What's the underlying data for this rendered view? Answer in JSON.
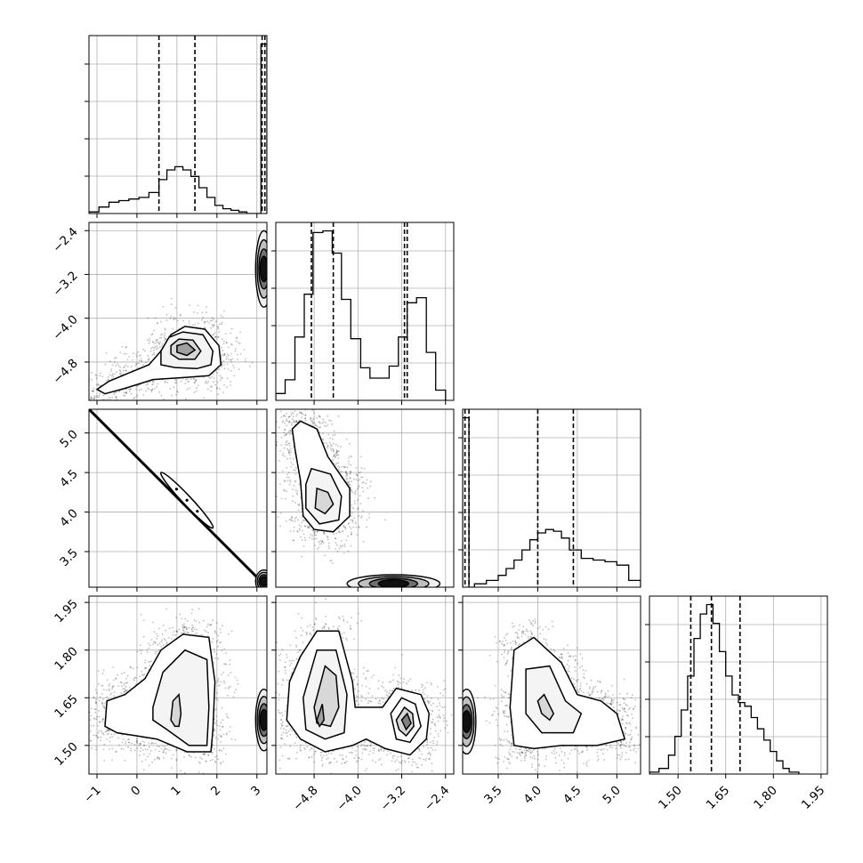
{
  "chart_data": {
    "type": "corner",
    "grid": true,
    "parameters": [
      {
        "range": [
          -1.2,
          3.25
        ],
        "ticks": [
          -1,
          0,
          1,
          2,
          3
        ],
        "tick_labels": [
          "−1",
          "0",
          "1",
          "2",
          "3"
        ],
        "quantiles": [
          0.55,
          1.45,
          3.13,
          3.2
        ],
        "histogram": {
          "bin_edges": [
            -1.2,
            -0.95,
            -0.7,
            -0.45,
            -0.2,
            0.05,
            0.3,
            0.55,
            0.75,
            0.95,
            1.15,
            1.35,
            1.55,
            1.75,
            1.95,
            2.15,
            2.35,
            2.55,
            2.75,
            3.1,
            3.25
          ],
          "counts": [
            0.01,
            0.04,
            0.07,
            0.08,
            0.09,
            0.1,
            0.13,
            0.21,
            0.27,
            0.29,
            0.27,
            0.23,
            0.16,
            0.1,
            0.05,
            0.03,
            0.02,
            0.01,
            0.0,
            1.05
          ]
        }
      },
      {
        "range": [
          -5.5,
          -2.25
        ],
        "ticks": [
          -4.8,
          -4.0,
          -3.2,
          -2.4
        ],
        "tick_labels": [
          "−4.8",
          "−4.0",
          "−3.2",
          "−2.4"
        ],
        "quantiles": [
          -4.85,
          -4.45,
          -3.15,
          -3.1
        ],
        "histogram": {
          "bin_edges": [
            -5.5,
            -5.33,
            -5.15,
            -4.98,
            -4.82,
            -4.64,
            -4.47,
            -4.3,
            -4.13,
            -3.95,
            -3.78,
            -3.6,
            -3.43,
            -3.26,
            -3.1,
            -2.93,
            -2.75,
            -2.58,
            -2.4
          ],
          "counts": [
            0.04,
            0.12,
            0.37,
            0.62,
            0.98,
            0.99,
            0.86,
            0.59,
            0.36,
            0.19,
            0.13,
            0.13,
            0.2,
            0.37,
            0.57,
            0.6,
            0.28,
            0.06
          ]
        }
      },
      {
        "range": [
          3.05,
          5.3
        ],
        "ticks": [
          3.5,
          4.0,
          4.5,
          5.0
        ],
        "tick_labels": [
          "3.5",
          "4.0",
          "4.5",
          "5.0"
        ],
        "quantiles": [
          3.08,
          3.13,
          4.0,
          4.45
        ],
        "histogram": {
          "bin_edges": [
            3.05,
            3.13,
            3.2,
            3.35,
            3.5,
            3.6,
            3.7,
            3.8,
            3.9,
            4.0,
            4.1,
            4.2,
            4.3,
            4.4,
            4.55,
            4.7,
            4.85,
            5.0,
            5.15,
            5.3
          ],
          "counts": [
            1.0,
            0.0,
            0.02,
            0.04,
            0.07,
            0.11,
            0.16,
            0.22,
            0.28,
            0.32,
            0.34,
            0.33,
            0.29,
            0.22,
            0.17,
            0.16,
            0.15,
            0.13,
            0.04
          ]
        }
      },
      {
        "range": [
          1.41,
          1.97
        ],
        "ticks": [
          1.5,
          1.65,
          1.8,
          1.95
        ],
        "tick_labels": [
          "1.50",
          "1.65",
          "1.80",
          "1.95"
        ],
        "quantiles": [
          1.54,
          1.605,
          1.695
        ],
        "histogram": {
          "bin_edges": [
            1.41,
            1.44,
            1.47,
            1.49,
            1.51,
            1.53,
            1.55,
            1.57,
            1.59,
            1.61,
            1.63,
            1.65,
            1.67,
            1.69,
            1.71,
            1.73,
            1.75,
            1.77,
            1.79,
            1.81,
            1.83,
            1.85,
            1.88
          ],
          "counts": [
            0.01,
            0.03,
            0.1,
            0.2,
            0.34,
            0.52,
            0.72,
            0.85,
            0.9,
            0.8,
            0.65,
            0.52,
            0.42,
            0.38,
            0.36,
            0.3,
            0.24,
            0.18,
            0.12,
            0.07,
            0.03,
            0.01
          ]
        }
      }
    ],
    "pairs": [
      {
        "row": 1,
        "col": 0,
        "contours": [
          [
            [
              -1.0,
              -5.3
            ],
            [
              -0.7,
              -5.15
            ],
            [
              -0.2,
              -5.0
            ],
            [
              0.3,
              -4.85
            ],
            [
              0.6,
              -4.6
            ],
            [
              0.85,
              -4.3
            ],
            [
              1.2,
              -4.15
            ],
            [
              1.7,
              -4.2
            ],
            [
              2.05,
              -4.5
            ],
            [
              2.1,
              -4.85
            ],
            [
              1.8,
              -5.05
            ],
            [
              1.2,
              -5.08
            ],
            [
              0.4,
              -5.12
            ],
            [
              -0.3,
              -5.28
            ],
            [
              -0.8,
              -5.38
            ]
          ],
          [
            [
              0.6,
              -4.6
            ],
            [
              0.8,
              -4.35
            ],
            [
              1.15,
              -4.25
            ],
            [
              1.65,
              -4.3
            ],
            [
              1.9,
              -4.6
            ],
            [
              1.85,
              -4.85
            ],
            [
              1.5,
              -4.92
            ],
            [
              0.95,
              -4.9
            ],
            [
              0.6,
              -4.85
            ]
          ],
          [
            [
              0.85,
              -4.5
            ],
            [
              1.05,
              -4.38
            ],
            [
              1.4,
              -4.4
            ],
            [
              1.6,
              -4.6
            ],
            [
              1.45,
              -4.75
            ],
            [
              1.05,
              -4.75
            ],
            [
              0.85,
              -4.65
            ]
          ],
          [
            [
              1.0,
              -4.5
            ],
            [
              1.25,
              -4.45
            ],
            [
              1.45,
              -4.58
            ],
            [
              1.25,
              -4.68
            ],
            [
              1.0,
              -4.62
            ]
          ]
        ],
        "edge_cluster": {
          "x": [
            3.1,
            3.25
          ],
          "y": [
            -3.7,
            -2.5
          ]
        }
      },
      {
        "row": 2,
        "col": 0,
        "ridge": [
          [
            -1.2,
            5.3
          ],
          [
            3.25,
            3.05
          ]
        ],
        "blob": [
          [
            0.6,
            4.5
          ],
          [
            1.9,
            3.8
          ]
        ],
        "edge_cluster": {
          "x": [
            3.1,
            3.25
          ],
          "y": [
            3.05,
            3.2
          ]
        }
      },
      {
        "row": 2,
        "col": 1,
        "contours": [
          [
            [
              -5.05,
              5.15
            ],
            [
              -4.75,
              5.05
            ],
            [
              -4.55,
              4.7
            ],
            [
              -4.35,
              4.5
            ],
            [
              -4.15,
              4.3
            ],
            [
              -4.15,
              3.95
            ],
            [
              -4.45,
              3.75
            ],
            [
              -4.8,
              3.78
            ],
            [
              -5.0,
              3.95
            ],
            [
              -5.05,
              4.4
            ],
            [
              -5.15,
              4.8
            ],
            [
              -5.2,
              5.05
            ]
          ],
          [
            [
              -4.85,
              4.55
            ],
            [
              -4.5,
              4.48
            ],
            [
              -4.3,
              4.2
            ],
            [
              -4.35,
              3.9
            ],
            [
              -4.7,
              3.85
            ],
            [
              -4.95,
              4.05
            ],
            [
              -4.95,
              4.35
            ]
          ],
          [
            [
              -4.75,
              4.3
            ],
            [
              -4.55,
              4.25
            ],
            [
              -4.45,
              4.1
            ],
            [
              -4.6,
              3.98
            ],
            [
              -4.78,
              4.05
            ]
          ]
        ],
        "edge_cluster": {
          "x": [
            -4.1,
            -2.6
          ],
          "y": [
            3.05,
            3.14
          ]
        }
      },
      {
        "row": 3,
        "col": 0,
        "contours": [
          [
            [
              -0.8,
              1.56
            ],
            [
              -0.75,
              1.64
            ],
            [
              -0.3,
              1.66
            ],
            [
              0.2,
              1.71
            ],
            [
              0.6,
              1.8
            ],
            [
              1.15,
              1.85
            ],
            [
              1.8,
              1.84
            ],
            [
              1.95,
              1.7
            ],
            [
              1.9,
              1.55
            ],
            [
              1.85,
              1.48
            ],
            [
              1.25,
              1.48
            ],
            [
              0.5,
              1.52
            ],
            [
              0.0,
              1.53
            ],
            [
              -0.5,
              1.54
            ]
          ],
          [
            [
              0.4,
              1.62
            ],
            [
              0.65,
              1.73
            ],
            [
              1.2,
              1.8
            ],
            [
              1.75,
              1.77
            ],
            [
              1.8,
              1.62
            ],
            [
              1.75,
              1.5
            ],
            [
              1.3,
              1.5
            ],
            [
              0.75,
              1.55
            ],
            [
              0.4,
              1.58
            ]
          ],
          [
            [
              0.85,
              1.58
            ],
            [
              0.9,
              1.64
            ],
            [
              1.05,
              1.66
            ],
            [
              1.1,
              1.6
            ],
            [
              1.05,
              1.56
            ],
            [
              0.95,
              1.56
            ]
          ]
        ],
        "edge_cluster": {
          "x": [
            3.1,
            3.25
          ],
          "y": [
            1.5,
            1.66
          ]
        }
      },
      {
        "row": 3,
        "col": 1,
        "contours": [
          [
            [
              -5.05,
              1.78
            ],
            [
              -4.75,
              1.86
            ],
            [
              -4.35,
              1.86
            ],
            [
              -4.1,
              1.7
            ],
            [
              -4.05,
              1.62
            ],
            [
              -3.55,
              1.62
            ],
            [
              -3.3,
              1.68
            ],
            [
              -2.85,
              1.66
            ],
            [
              -2.7,
              1.6
            ],
            [
              -2.75,
              1.52
            ],
            [
              -3.05,
              1.47
            ],
            [
              -3.5,
              1.49
            ],
            [
              -3.85,
              1.52
            ],
            [
              -4.1,
              1.5
            ],
            [
              -4.6,
              1.48
            ],
            [
              -5.05,
              1.52
            ],
            [
              -5.3,
              1.58
            ],
            [
              -5.25,
              1.7
            ]
          ],
          [
            [
              -5.0,
              1.65
            ],
            [
              -4.75,
              1.8
            ],
            [
              -4.4,
              1.8
            ],
            [
              -4.2,
              1.66
            ],
            [
              -4.25,
              1.54
            ],
            [
              -4.6,
              1.52
            ],
            [
              -4.95,
              1.55
            ]
          ],
          [
            [
              -4.8,
              1.62
            ],
            [
              -4.6,
              1.75
            ],
            [
              -4.4,
              1.72
            ],
            [
              -4.35,
              1.62
            ],
            [
              -4.5,
              1.56
            ],
            [
              -4.75,
              1.57
            ]
          ],
          [
            [
              -4.75,
              1.58
            ],
            [
              -4.65,
              1.63
            ],
            [
              -4.62,
              1.58
            ],
            [
              -4.7,
              1.56
            ]
          ],
          [
            [
              -3.4,
              1.6
            ],
            [
              -3.2,
              1.65
            ],
            [
              -2.95,
              1.63
            ],
            [
              -2.85,
              1.56
            ],
            [
              -3.05,
              1.51
            ],
            [
              -3.3,
              1.52
            ]
          ],
          [
            [
              -3.3,
              1.58
            ],
            [
              -3.15,
              1.62
            ],
            [
              -3.0,
              1.6
            ],
            [
              -2.98,
              1.56
            ],
            [
              -3.12,
              1.53
            ],
            [
              -3.25,
              1.55
            ]
          ],
          [
            [
              -3.2,
              1.58
            ],
            [
              -3.1,
              1.6
            ],
            [
              -3.03,
              1.57
            ],
            [
              -3.12,
              1.55
            ]
          ]
        ]
      },
      {
        "row": 3,
        "col": 2,
        "contours": [
          [
            [
              3.7,
              1.8
            ],
            [
              3.95,
              1.84
            ],
            [
              4.3,
              1.76
            ],
            [
              4.5,
              1.66
            ],
            [
              4.8,
              1.64
            ],
            [
              5.0,
              1.6
            ],
            [
              5.1,
              1.52
            ],
            [
              4.75,
              1.5
            ],
            [
              4.3,
              1.5
            ],
            [
              3.95,
              1.49
            ],
            [
              3.7,
              1.5
            ],
            [
              3.65,
              1.62
            ]
          ],
          [
            [
              3.85,
              1.74
            ],
            [
              4.15,
              1.75
            ],
            [
              4.35,
              1.64
            ],
            [
              4.55,
              1.6
            ],
            [
              4.45,
              1.54
            ],
            [
              4.05,
              1.54
            ],
            [
              3.85,
              1.6
            ]
          ],
          [
            [
              4.0,
              1.64
            ],
            [
              4.08,
              1.66
            ],
            [
              4.2,
              1.6
            ],
            [
              4.15,
              1.58
            ],
            [
              4.05,
              1.6
            ]
          ]
        ],
        "edge_cluster": {
          "x": [
            3.05,
            3.15
          ],
          "y": [
            1.49,
            1.66
          ]
        }
      }
    ]
  }
}
